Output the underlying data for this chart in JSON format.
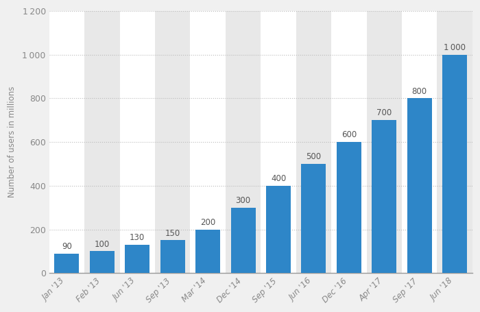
{
  "categories": [
    "Jan '13",
    "Feb '13",
    "Jun '13",
    "Sep '13",
    "Mar '14",
    "Dec '14",
    "Sep '15",
    "Jun '16",
    "Dec '16",
    "Apr '17",
    "Sep '17",
    "Jun '18"
  ],
  "values": [
    90,
    100,
    130,
    150,
    200,
    300,
    400,
    500,
    600,
    700,
    800,
    1000
  ],
  "bar_color": "#2e86c8",
  "ylabel": "Number of users in millions",
  "ylim": [
    0,
    1200
  ],
  "yticks": [
    0,
    200,
    400,
    600,
    800,
    1000,
    1200
  ],
  "background_color": "#f0f0f0",
  "plot_background_color": "#ffffff",
  "column_band_color_light": "#ffffff",
  "column_band_color_dark": "#e8e8e8",
  "grid_color": "#bbbbbb",
  "label_color": "#888888",
  "value_label_color": "#555555",
  "bar_width": 0.7
}
